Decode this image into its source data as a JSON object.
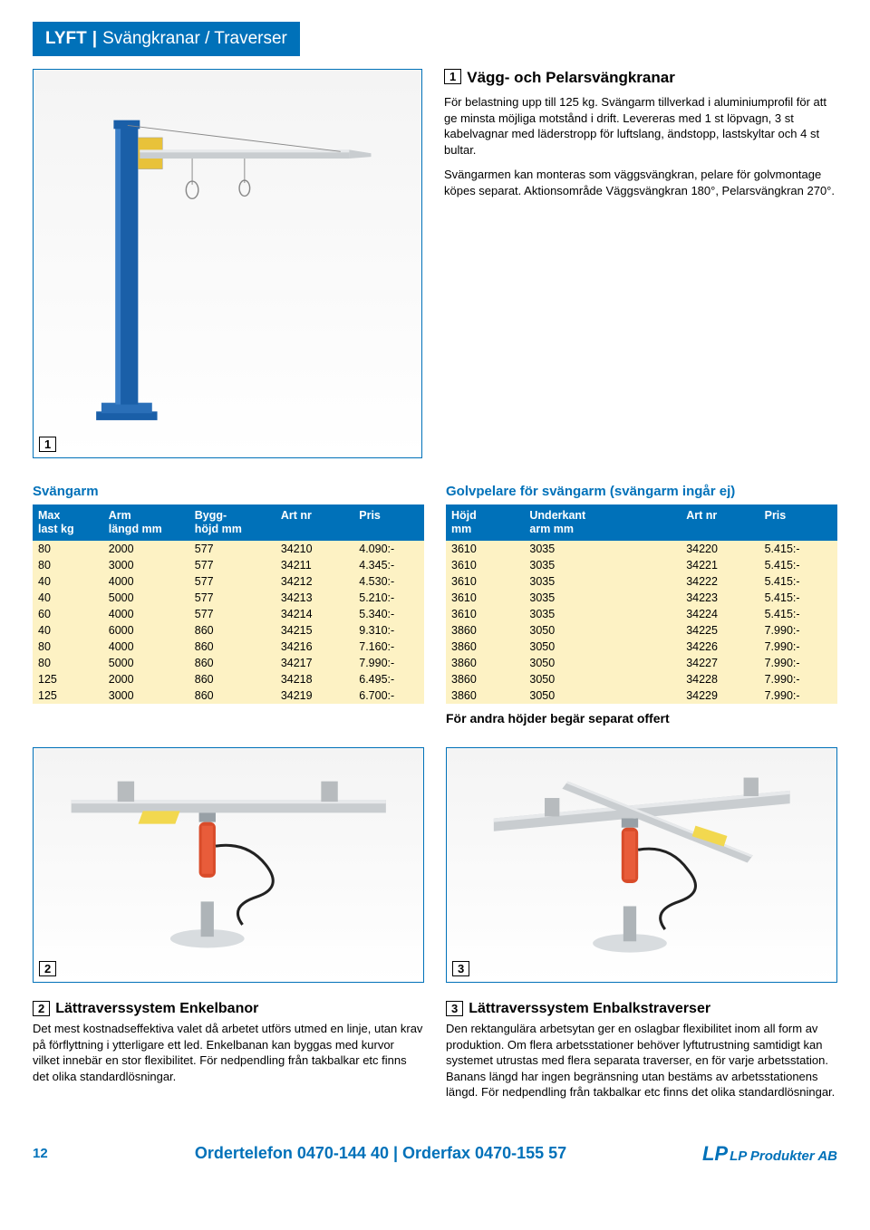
{
  "header": {
    "category": "LYFT",
    "subcategory": "Svängkranar / Traverser"
  },
  "section1": {
    "badge": "1",
    "title": "Vägg- och Pelarsvängkranar",
    "p1": "För belastning upp till 125 kg. Svängarm tillverkad i aluminiumprofil för att ge minsta möjliga motstånd i drift. Levereras med 1 st löpvagn, 3 st kabelvagnar med läderstropp för luftslang, ändstopp, lastskyltar och 4 st bultar.",
    "p2": "Svängarmen kan monteras som väggsvängkran, pelare för golvmontage köpes separat. Aktionsområde Väggsvängkran 180°, Pelarsvängkran 270°."
  },
  "table1": {
    "title": "Svängarm",
    "headers": [
      "Max\nlast kg",
      "Arm\nlängd mm",
      "Bygg-\nhöjd mm",
      "Art nr",
      "Pris"
    ],
    "rows": [
      [
        "80",
        "2000",
        "577",
        "34210",
        "4.090:-"
      ],
      [
        "80",
        "3000",
        "577",
        "34211",
        "4.345:-"
      ],
      [
        "40",
        "4000",
        "577",
        "34212",
        "4.530:-"
      ],
      [
        "40",
        "5000",
        "577",
        "34213",
        "5.210:-"
      ],
      [
        "60",
        "4000",
        "577",
        "34214",
        "5.340:-"
      ],
      [
        "40",
        "6000",
        "860",
        "34215",
        "9.310:-"
      ],
      [
        "80",
        "4000",
        "860",
        "34216",
        "7.160:-"
      ],
      [
        "80",
        "5000",
        "860",
        "34217",
        "7.990:-"
      ],
      [
        "125",
        "2000",
        "860",
        "34218",
        "6.495:-"
      ],
      [
        "125",
        "3000",
        "860",
        "34219",
        "6.700:-"
      ]
    ]
  },
  "table2": {
    "title": "Golvpelare för svängarm (svängarm ingår ej)",
    "headers": [
      "Höjd\nmm",
      "Underkant\narm mm",
      "Art nr",
      "Pris"
    ],
    "rows": [
      [
        "3610",
        "3035",
        "34220",
        "5.415:-"
      ],
      [
        "3610",
        "3035",
        "34221",
        "5.415:-"
      ],
      [
        "3610",
        "3035",
        "34222",
        "5.415:-"
      ],
      [
        "3610",
        "3035",
        "34223",
        "5.415:-"
      ],
      [
        "3610",
        "3035",
        "34224",
        "5.415:-"
      ],
      [
        "3860",
        "3050",
        "34225",
        "7.990:-"
      ],
      [
        "3860",
        "3050",
        "34226",
        "7.990:-"
      ],
      [
        "3860",
        "3050",
        "34227",
        "7.990:-"
      ],
      [
        "3860",
        "3050",
        "34228",
        "7.990:-"
      ],
      [
        "3860",
        "3050",
        "34229",
        "7.990:-"
      ]
    ],
    "note": "För andra höjder begär separat offert"
  },
  "section2": {
    "badge": "2",
    "title": "Lättraverssystem Enkelbanor",
    "body": "Det mest kostnadseffektiva valet då arbetet utförs utmed en linje, utan krav på förflyttning i ytterligare ett led. Enkelbanan kan byggas med kurvor vilket innebär en stor flexibilitet. För nedpendling från takbalkar etc finns det olika standardlösningar."
  },
  "section3": {
    "badge": "3",
    "title": "Lättraverssystem Enbalkstraverser",
    "body": "Den rektangulära arbetsytan ger en oslagbar flexibilitet inom all form av produktion. Om flera arbetsstationer behöver lyftutrustning samtidigt kan systemet utrustas med flera separata traverser, en för varje arbetsstation. Banans längd har ingen begränsning utan bestäms av arbetsstationens längd. För nedpendling från takbalkar etc finns det olika standardlösningar."
  },
  "footer": {
    "page": "12",
    "order": "Ordertelefon 0470-144 40 | Orderfax 0470-155 57",
    "logo": "LP Produkter AB"
  },
  "colors": {
    "brand_blue": "#0071b9",
    "table_row_bg": "#fdf2c4",
    "pillar_blue": "#1a5fa8",
    "arm_grey": "#c9cdd0",
    "arm_light": "#e7e9eb",
    "balancer_red": "#d94c2a"
  }
}
